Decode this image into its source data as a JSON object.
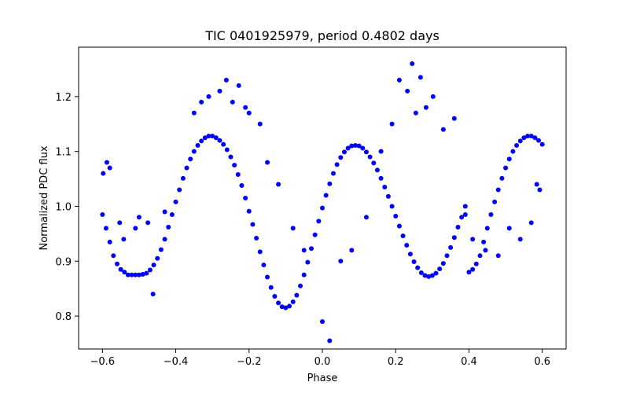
{
  "chart_data": {
    "type": "scatter",
    "title": "TIC 0401925979, period 0.4802 days",
    "xlabel": "Phase",
    "ylabel": "Normalized PDC flux",
    "xlim": [
      -0.665,
      0.665
    ],
    "ylim": [
      0.74,
      1.29
    ],
    "xticks": [
      -0.6,
      -0.4,
      -0.2,
      0.0,
      0.2,
      0.4,
      0.6
    ],
    "xtick_labels": [
      "−0.6",
      "−0.4",
      "−0.2",
      "0.0",
      "0.2",
      "0.4",
      "0.6"
    ],
    "yticks": [
      0.8,
      0.9,
      1.0,
      1.1,
      1.2
    ],
    "ytick_labels": [
      "0.8",
      "0.9",
      "1.0",
      "1.1",
      "1.2"
    ],
    "grid": false,
    "legend": "none",
    "marker_color": "#0000ff",
    "x": [
      -0.6,
      -0.59,
      -0.58,
      -0.57,
      -0.56,
      -0.55,
      -0.54,
      -0.53,
      -0.52,
      -0.51,
      -0.5,
      -0.49,
      -0.48,
      -0.47,
      -0.46,
      -0.45,
      -0.44,
      -0.43,
      -0.42,
      -0.41,
      -0.4,
      -0.39,
      -0.38,
      -0.37,
      -0.36,
      -0.35,
      -0.34,
      -0.33,
      -0.32,
      -0.31,
      -0.3,
      -0.29,
      -0.28,
      -0.27,
      -0.26,
      -0.25,
      -0.24,
      -0.23,
      -0.22,
      -0.21,
      -0.2,
      -0.19,
      -0.18,
      -0.17,
      -0.16,
      -0.15,
      -0.14,
      -0.13,
      -0.12,
      -0.11,
      -0.1,
      -0.09,
      -0.08,
      -0.07,
      -0.06,
      -0.05,
      -0.04,
      -0.03,
      -0.02,
      -0.01,
      0.0,
      0.01,
      0.02,
      0.03,
      0.04,
      0.05,
      0.06,
      0.07,
      0.08,
      0.09,
      0.1,
      0.11,
      0.12,
      0.13,
      0.14,
      0.15,
      0.16,
      0.17,
      0.18,
      0.19,
      0.2,
      0.21,
      0.22,
      0.23,
      0.24,
      0.25,
      0.26,
      0.27,
      0.28,
      0.29,
      0.3,
      0.31,
      0.32,
      0.33,
      0.34,
      0.35,
      0.36,
      0.37,
      0.38,
      0.39,
      0.4,
      0.41,
      0.42,
      0.43,
      0.44,
      0.45,
      0.46,
      0.47,
      0.48,
      0.49,
      0.5,
      0.51,
      0.52,
      0.53,
      0.54,
      0.55,
      0.56,
      0.57,
      0.58,
      0.59,
      0.6
    ],
    "y": [
      0.985,
      0.96,
      0.935,
      0.91,
      0.895,
      0.885,
      0.88,
      0.875,
      0.875,
      0.875,
      0.875,
      0.876,
      0.878,
      0.884,
      0.893,
      0.905,
      0.921,
      0.94,
      0.962,
      0.985,
      1.008,
      1.03,
      1.051,
      1.07,
      1.086,
      1.1,
      1.111,
      1.119,
      1.125,
      1.128,
      1.128,
      1.125,
      1.12,
      1.113,
      1.103,
      1.09,
      1.075,
      1.058,
      1.038,
      1.015,
      0.991,
      0.967,
      0.942,
      0.917,
      0.893,
      0.871,
      0.852,
      0.836,
      0.824,
      0.817,
      0.815,
      0.818,
      0.826,
      0.838,
      0.855,
      0.875,
      0.898,
      0.923,
      0.948,
      0.973,
      0.997,
      1.02,
      1.041,
      1.06,
      1.076,
      1.089,
      1.099,
      1.106,
      1.11,
      1.111,
      1.11,
      1.106,
      1.099,
      1.09,
      1.079,
      1.066,
      1.051,
      1.035,
      1.018,
      1.0,
      0.982,
      0.964,
      0.946,
      0.929,
      0.913,
      0.899,
      0.888,
      0.879,
      0.874,
      0.872,
      0.874,
      0.878,
      0.886,
      0.896,
      0.91,
      0.925,
      0.943,
      0.962,
      0.98,
      0.985,
      0.88,
      0.885,
      0.895,
      0.91,
      0.935,
      0.96,
      0.985,
      1.008,
      1.03,
      1.051,
      1.07,
      1.086,
      1.1,
      1.111,
      1.119,
      1.125,
      1.128,
      1.128,
      1.125,
      1.12,
      1.113
    ],
    "outliers_x": [
      -0.598,
      -0.588,
      -0.58,
      -0.553,
      -0.542,
      -0.51,
      -0.5,
      -0.476,
      -0.462,
      -0.43,
      -0.35,
      -0.33,
      -0.31,
      -0.28,
      -0.262,
      -0.245,
      -0.228,
      -0.21,
      -0.2,
      -0.17,
      -0.15,
      -0.12,
      -0.08,
      -0.05,
      0.0,
      0.02,
      0.05,
      0.08,
      0.12,
      0.16,
      0.19,
      0.21,
      0.232,
      0.245,
      0.255,
      0.268,
      0.283,
      0.302,
      0.33,
      0.36,
      0.39,
      0.41,
      0.445,
      0.48,
      0.51,
      0.54,
      0.57,
      0.585,
      0.593
    ],
    "outliers_y": [
      1.06,
      1.08,
      1.07,
      0.97,
      0.94,
      0.96,
      0.98,
      0.97,
      0.84,
      0.99,
      1.17,
      1.19,
      1.2,
      1.21,
      1.23,
      1.19,
      1.22,
      1.18,
      1.17,
      1.15,
      1.08,
      1.04,
      0.96,
      0.92,
      0.79,
      0.755,
      0.9,
      0.92,
      0.98,
      1.1,
      1.15,
      1.23,
      1.21,
      1.26,
      1.17,
      1.235,
      1.18,
      1.2,
      1.14,
      1.16,
      1.0,
      0.94,
      0.92,
      0.91,
      0.96,
      0.94,
      0.97,
      1.04,
      1.03
    ]
  }
}
